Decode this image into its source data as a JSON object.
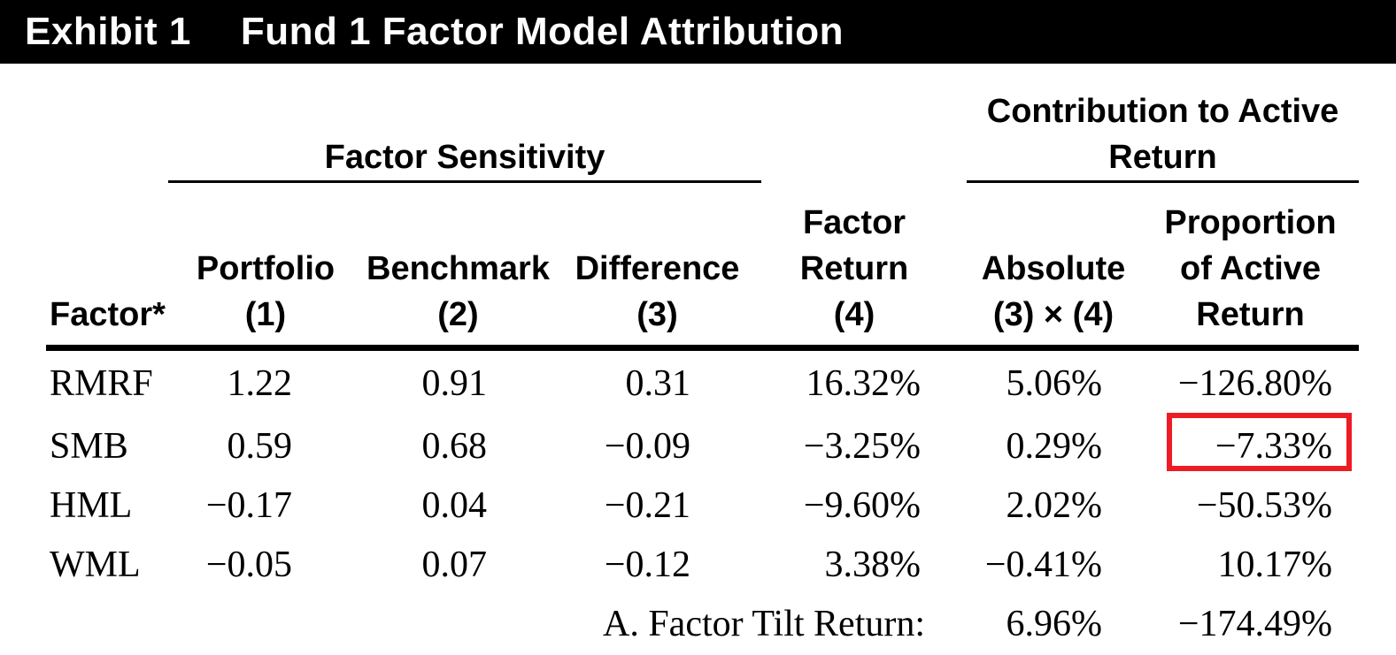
{
  "title_bar": {
    "exhibit_label": "Exhibit 1",
    "title": "Fund 1 Factor Model Attribution"
  },
  "table": {
    "group_headers": {
      "factor_sensitivity": "Factor Sensitivity",
      "contribution": "Contribution to Active\nReturn"
    },
    "column_headers": {
      "factor": "Factor*",
      "portfolio": "Portfolio\n(1)",
      "benchmark": "Benchmark\n(2)",
      "difference": "Difference\n(3)",
      "factor_return": "Factor\nReturn\n(4)",
      "absolute": "Absolute\n(3) × (4)",
      "proportion": "Proportion\nof Active\nReturn"
    },
    "rows": [
      {
        "factor": "RMRF",
        "portfolio": "1.22",
        "benchmark": "0.91",
        "difference": "0.31",
        "factor_return": "16.32%",
        "absolute": "5.06%",
        "proportion": "−126.80%"
      },
      {
        "factor": "SMB",
        "portfolio": "0.59",
        "benchmark": "0.68",
        "difference": "−0.09",
        "factor_return": "−3.25%",
        "absolute": "0.29%",
        "proportion": "−7.33%"
      },
      {
        "factor": "HML",
        "portfolio": "−0.17",
        "benchmark": "0.04",
        "difference": "−0.21",
        "factor_return": "−9.60%",
        "absolute": "2.02%",
        "proportion": "−50.53%"
      },
      {
        "factor": "WML",
        "portfolio": "−0.05",
        "benchmark": "0.07",
        "difference": "−0.12",
        "factor_return": "3.38%",
        "absolute": "−0.41%",
        "proportion": "10.17%"
      }
    ],
    "footer": {
      "label": "A. Factor Tilt Return:",
      "absolute": "6.96%",
      "proportion": "−174.49%"
    },
    "highlight": {
      "row": "SMB",
      "column": "proportion",
      "value": "−7.33%",
      "box_color": "#ed1c24"
    }
  },
  "colors": {
    "title_bar_bg": "#000000",
    "title_bar_text": "#ffffff",
    "body_text": "#000000",
    "background": "#ffffff",
    "highlight_box": "#ed1c24"
  }
}
